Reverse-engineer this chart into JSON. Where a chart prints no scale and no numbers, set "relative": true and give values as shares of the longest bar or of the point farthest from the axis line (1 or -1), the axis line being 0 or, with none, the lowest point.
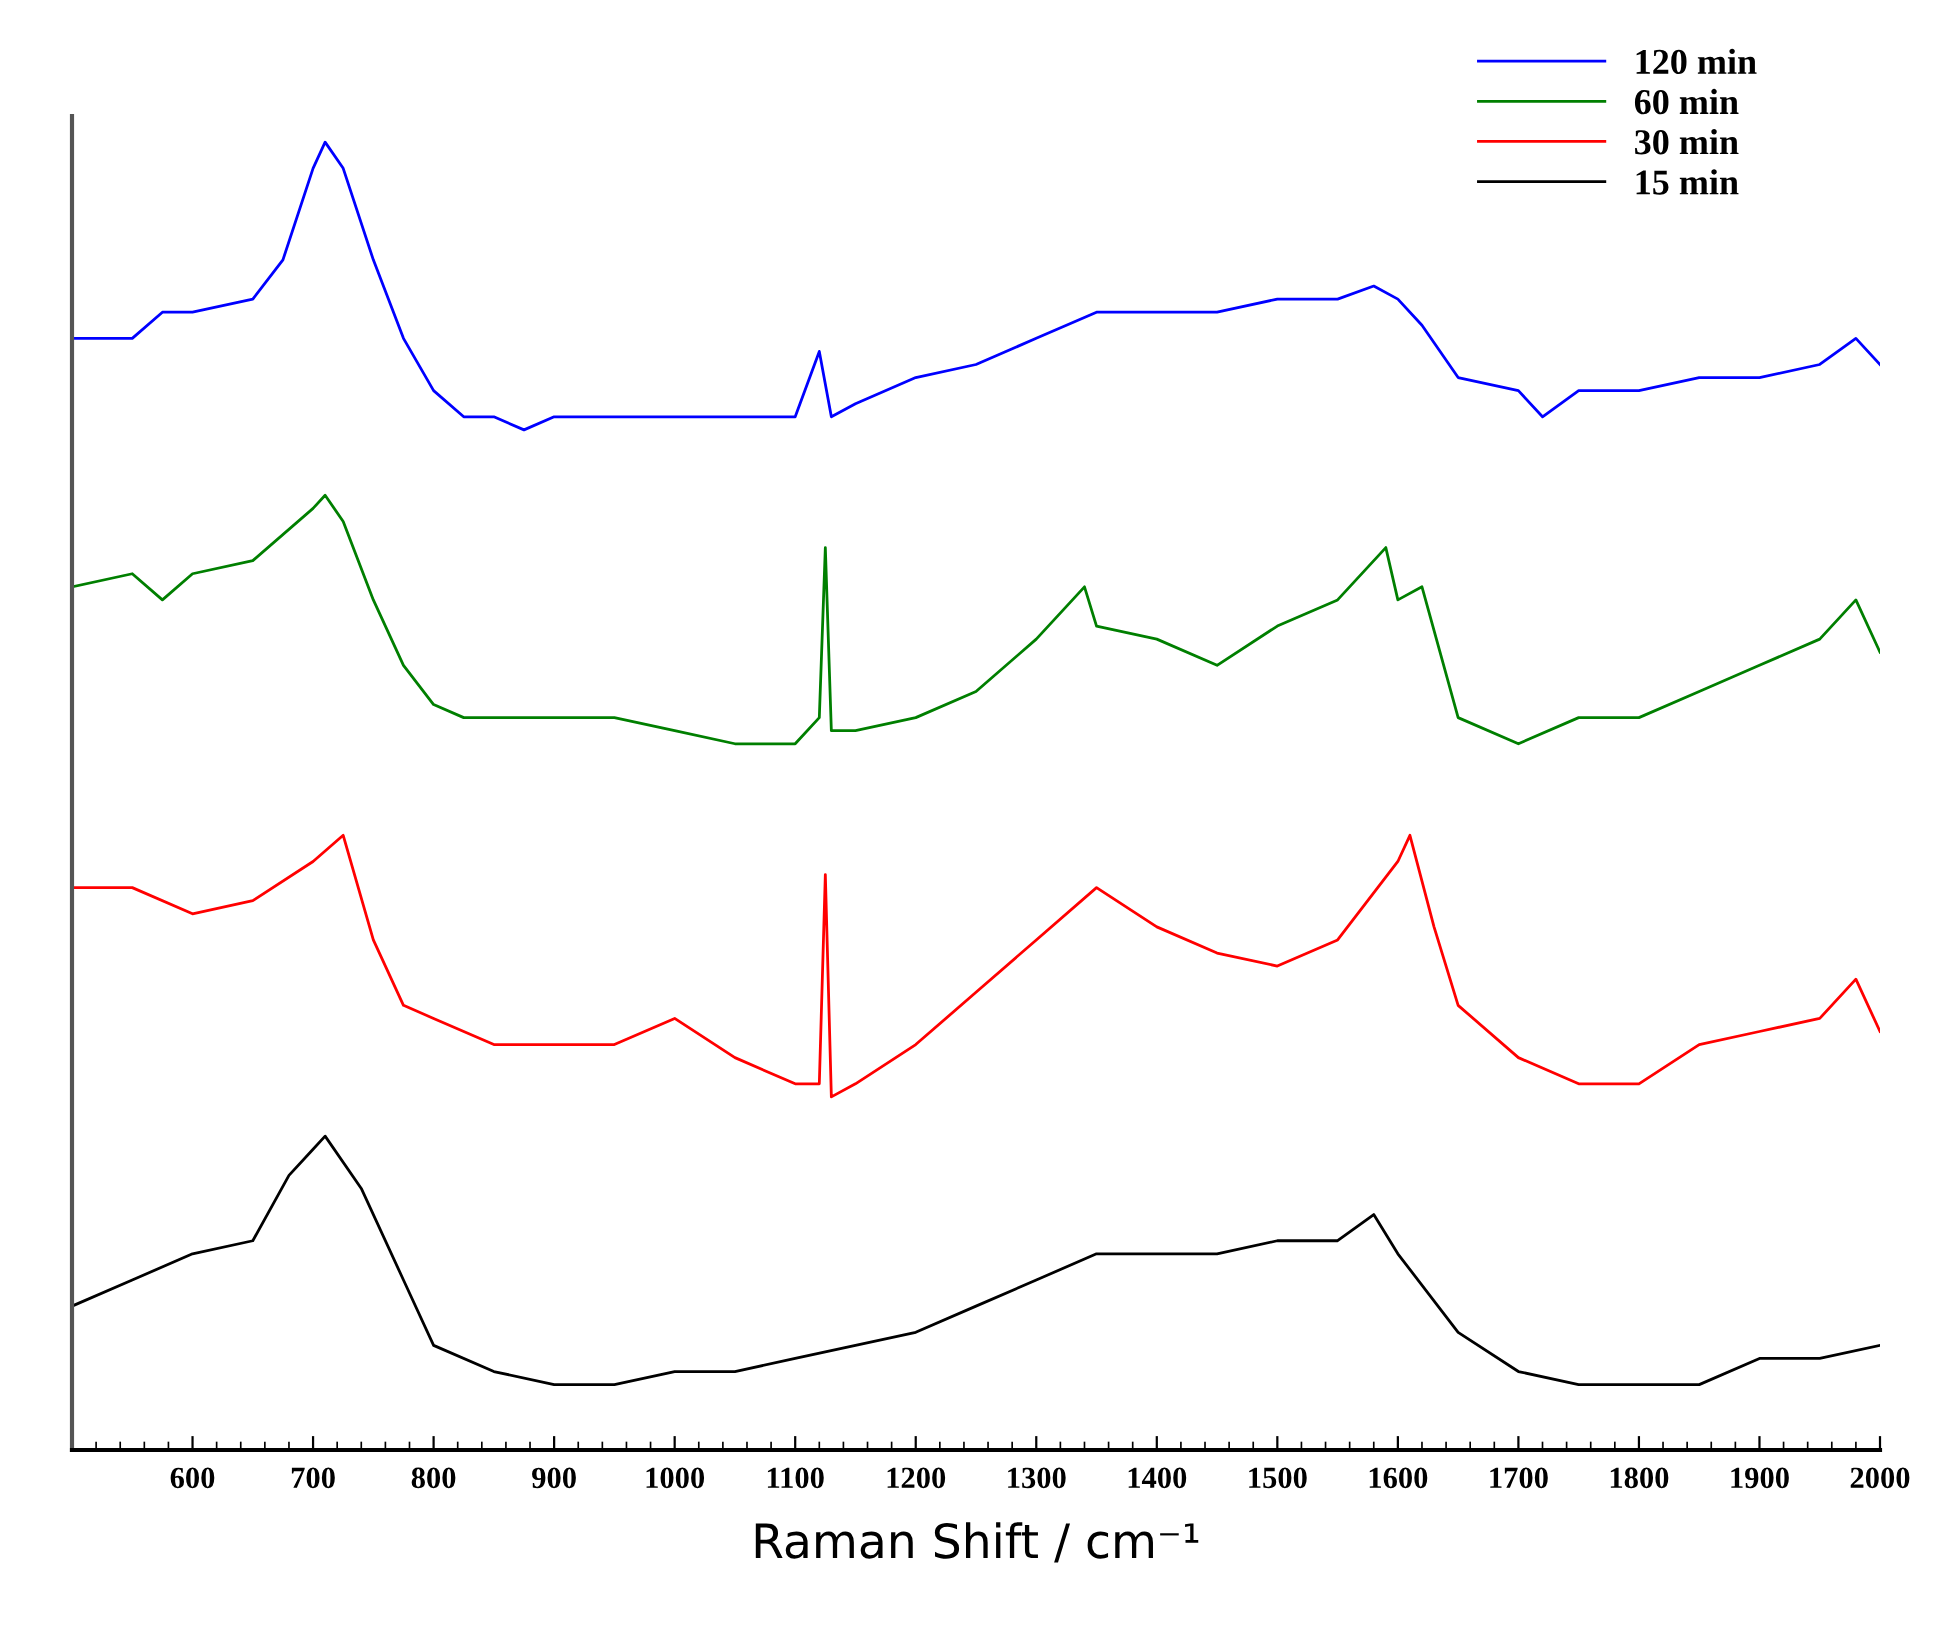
{
  "chart_data": {
    "type": "line",
    "relative": true,
    "xlabel": "Raman Shift / cm⁻¹",
    "xlim": [
      500,
      2000
    ],
    "xticks": [
      {
        "value": 520,
        "label": null
      },
      {
        "value": 540,
        "label": null
      },
      {
        "value": 560,
        "label": null
      },
      {
        "value": 580,
        "label": null
      },
      600,
      {
        "value": 620,
        "label": null
      },
      {
        "value": 640,
        "label": null
      },
      {
        "value": 660,
        "label": null
      },
      {
        "value": 680,
        "label": null
      },
      700,
      {
        "value": 720,
        "label": null
      },
      {
        "value": 740,
        "label": null
      },
      {
        "value": 760,
        "label": null
      },
      {
        "value": 780,
        "label": null
      },
      800,
      {
        "value": 820,
        "label": null
      },
      {
        "value": 840,
        "label": null
      },
      {
        "value": 860,
        "label": null
      },
      {
        "value": 880,
        "label": null
      },
      900,
      {
        "value": 920,
        "label": null
      },
      {
        "value": 940,
        "label": null
      },
      {
        "value": 960,
        "label": null
      },
      {
        "value": 980,
        "label": null
      },
      1000,
      {
        "value": 1020,
        "label": null
      },
      {
        "value": 1040,
        "label": null
      },
      {
        "value": 1060,
        "label": null
      },
      {
        "value": 1080,
        "label": null
      },
      1100,
      {
        "value": 1120,
        "label": null
      },
      {
        "value": 1140,
        "label": null
      },
      {
        "value": 1160,
        "label": null
      },
      {
        "value": 1180,
        "label": null
      },
      1200,
      {
        "value": 1220,
        "label": null
      },
      {
        "value": 1240,
        "label": null
      },
      {
        "value": 1260,
        "label": null
      },
      {
        "value": 1280,
        "label": null
      },
      1300,
      {
        "value": 1320,
        "label": null
      },
      {
        "value": 1340,
        "label": null
      },
      {
        "value": 1360,
        "label": null
      },
      {
        "value": 1380,
        "label": null
      },
      1400,
      {
        "value": 1420,
        "label": null
      },
      {
        "value": 1440,
        "label": null
      },
      {
        "value": 1460,
        "label": null
      },
      {
        "value": 1480,
        "label": null
      },
      1500,
      {
        "value": 1520,
        "label": null
      },
      {
        "value": 1540,
        "label": null
      },
      {
        "value": 1560,
        "label": null
      },
      {
        "value": 1580,
        "label": null
      },
      1600,
      {
        "value": 1620,
        "label": null
      },
      {
        "value": 1640,
        "label": null
      },
      {
        "value": 1660,
        "label": null
      },
      {
        "value": 1680,
        "label": null
      },
      1700,
      {
        "value": 1720,
        "label": null
      },
      {
        "value": 1740,
        "label": null
      },
      {
        "value": 1760,
        "label": null
      },
      {
        "value": 1780,
        "label": null
      },
      1800,
      {
        "value": 1820,
        "label": null
      },
      {
        "value": 1840,
        "label": null
      },
      {
        "value": 1860,
        "label": null
      },
      {
        "value": 1880,
        "label": null
      },
      1900,
      {
        "value": 1920,
        "label": null
      },
      {
        "value": 1940,
        "label": null
      },
      {
        "value": 1960,
        "label": null
      },
      {
        "value": 1980,
        "label": null
      },
      2000
    ],
    "tick_labels": "x",
    "grid": false,
    "legend": "top right",
    "marker": "none",
    "line_style": "solid",
    "series": [
      {
        "name": "120 min",
        "color": "#0000ff",
        "x": [
          500,
          550,
          575,
          600,
          650,
          675,
          700,
          710,
          725,
          750,
          775,
          800,
          825,
          850,
          875,
          900,
          950,
          1000,
          1050,
          1100,
          1120,
          1130,
          1150,
          1200,
          1250,
          1300,
          1350,
          1400,
          1450,
          1500,
          1550,
          1580,
          1600,
          1620,
          1650,
          1700,
          1720,
          1750,
          1800,
          1850,
          1900,
          1950,
          1980,
          2000
        ],
        "values": [
          0.85,
          0.85,
          0.87,
          0.87,
          0.88,
          0.91,
          0.98,
          1.0,
          0.98,
          0.91,
          0.85,
          0.81,
          0.79,
          0.79,
          0.78,
          0.79,
          0.79,
          0.79,
          0.79,
          0.79,
          0.84,
          0.79,
          0.8,
          0.82,
          0.83,
          0.85,
          0.87,
          0.87,
          0.87,
          0.88,
          0.88,
          0.89,
          0.88,
          0.86,
          0.82,
          0.81,
          0.79,
          0.81,
          0.81,
          0.82,
          0.82,
          0.83,
          0.85,
          0.83
        ]
      },
      {
        "name": "60 min",
        "color": "#007f00",
        "x": [
          500,
          550,
          575,
          600,
          650,
          700,
          710,
          725,
          750,
          775,
          800,
          825,
          850,
          900,
          950,
          1000,
          1050,
          1100,
          1120,
          1125,
          1130,
          1150,
          1200,
          1250,
          1300,
          1340,
          1350,
          1400,
          1450,
          1500,
          1550,
          1590,
          1600,
          1620,
          1650,
          1700,
          1750,
          1800,
          1850,
          1900,
          1950,
          1980,
          2000
        ],
        "values": [
          0.66,
          0.67,
          0.65,
          0.67,
          0.68,
          0.72,
          0.73,
          0.71,
          0.65,
          0.6,
          0.57,
          0.56,
          0.56,
          0.56,
          0.56,
          0.55,
          0.54,
          0.54,
          0.56,
          0.69,
          0.55,
          0.55,
          0.56,
          0.58,
          0.62,
          0.66,
          0.63,
          0.62,
          0.6,
          0.63,
          0.65,
          0.69,
          0.65,
          0.66,
          0.56,
          0.54,
          0.56,
          0.56,
          0.58,
          0.6,
          0.62,
          0.65,
          0.61
        ]
      },
      {
        "name": "30 min",
        "color": "#ff0000",
        "x": [
          500,
          550,
          600,
          650,
          700,
          725,
          750,
          775,
          800,
          850,
          900,
          950,
          1000,
          1050,
          1100,
          1120,
          1125,
          1130,
          1150,
          1200,
          1250,
          1300,
          1350,
          1400,
          1450,
          1500,
          1550,
          1600,
          1610,
          1630,
          1650,
          1700,
          1750,
          1800,
          1850,
          1900,
          1950,
          1980,
          2000
        ],
        "values": [
          0.43,
          0.43,
          0.41,
          0.42,
          0.45,
          0.47,
          0.39,
          0.34,
          0.33,
          0.31,
          0.31,
          0.31,
          0.33,
          0.3,
          0.28,
          0.28,
          0.44,
          0.27,
          0.28,
          0.31,
          0.35,
          0.39,
          0.43,
          0.4,
          0.38,
          0.37,
          0.39,
          0.45,
          0.47,
          0.4,
          0.34,
          0.3,
          0.28,
          0.28,
          0.31,
          0.32,
          0.33,
          0.36,
          0.32
        ]
      },
      {
        "name": "15 min",
        "color": "#000000",
        "x": [
          500,
          550,
          600,
          650,
          680,
          700,
          710,
          740,
          775,
          800,
          850,
          900,
          950,
          1000,
          1050,
          1100,
          1150,
          1200,
          1250,
          1300,
          1350,
          1400,
          1450,
          1500,
          1550,
          1580,
          1600,
          1650,
          1700,
          1750,
          1800,
          1850,
          1900,
          1950,
          2000
        ],
        "values": [
          0.11,
          0.13,
          0.15,
          0.16,
          0.21,
          0.23,
          0.24,
          0.2,
          0.13,
          0.08,
          0.06,
          0.05,
          0.05,
          0.06,
          0.06,
          0.07,
          0.08,
          0.09,
          0.11,
          0.13,
          0.15,
          0.15,
          0.15,
          0.16,
          0.16,
          0.18,
          0.15,
          0.09,
          0.06,
          0.05,
          0.05,
          0.05,
          0.07,
          0.07,
          0.08
        ]
      }
    ]
  }
}
